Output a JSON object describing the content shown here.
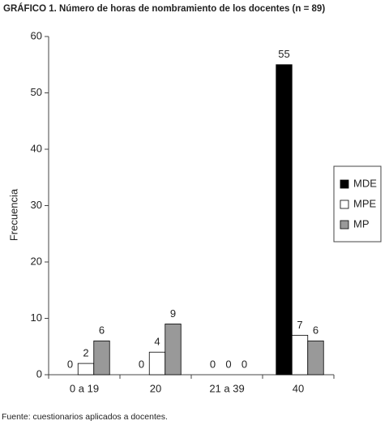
{
  "chart_data": {
    "type": "bar",
    "title": "GRÁFICO 1. Número de horas de nombramiento de los docentes (n = 89)",
    "y_label": "Frecuencia",
    "footer": "Fuente: cuestionarios aplicados a docentes.",
    "categories": [
      "0 a 19",
      "20",
      "21 a 39",
      "40"
    ],
    "series": [
      {
        "name": "MDE",
        "color": "#000000",
        "values": [
          0,
          0,
          0,
          55
        ]
      },
      {
        "name": "MPE",
        "color": "#ffffff",
        "values": [
          2,
          4,
          0,
          7
        ]
      },
      {
        "name": "MP",
        "color": "#999999",
        "values": [
          6,
          9,
          0,
          6
        ]
      }
    ],
    "ylim": [
      0,
      60
    ],
    "yticks": [
      0,
      10,
      20,
      30,
      40,
      50,
      60
    ],
    "legend": "right"
  }
}
